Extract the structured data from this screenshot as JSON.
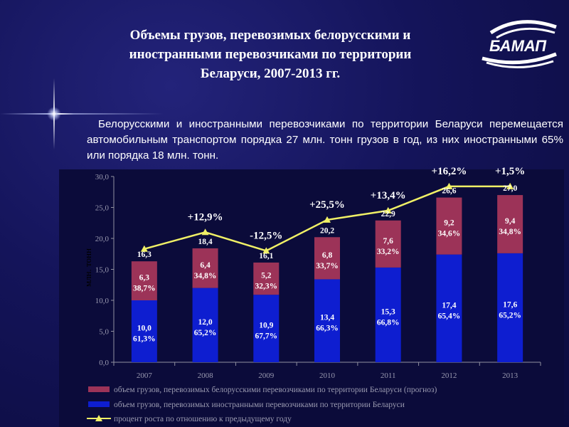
{
  "slide": {
    "title_line1": "Объемы грузов, перевозимых белорусскими и",
    "title_line2": "иностранными перевозчиками по территории",
    "title_line3": "Беларуси, 2007-2013 гг.",
    "paragraph": "Белорусскими и иностранными перевозчиками по территории Беларуси перемещается автомобильным транспортом порядка 27 млн. тонн грузов в год, из них иностранными 65% или порядка 18 млн. тонн.",
    "logo_text": "БАМАП"
  },
  "colors": {
    "belarusian_bar": "#9c3358",
    "foreign_bar": "#0e1ed0",
    "growth_line": "#f0f066",
    "axis": "#9090a0"
  },
  "chart_data": {
    "type": "bar",
    "stacked": true,
    "ylabel": "млн. тонн",
    "ylim": [
      0,
      30
    ],
    "yticks": [
      "0,0",
      "5,0",
      "10,0",
      "15,0",
      "20,0",
      "25,0",
      "30,0"
    ],
    "categories": [
      "2007",
      "2008",
      "2009",
      "2010",
      "2011",
      "2012",
      "2013"
    ],
    "series": [
      {
        "name": "объем грузов, перевозимых иностранными перевозчиками по территории Беларуси",
        "values": [
          10.0,
          12.0,
          10.9,
          13.4,
          15.3,
          17.4,
          17.6
        ],
        "value_labels": [
          "10,0",
          "12,0",
          "10,9",
          "13,4",
          "15,3",
          "17,4",
          "17,6"
        ],
        "share_labels": [
          "61,3%",
          "65,2%",
          "67,7%",
          "66,3%",
          "66,8%",
          "65,4%",
          "65,2%"
        ]
      },
      {
        "name": "объем грузов, перевозимых белорусскими перевозчиками по территории Беларуси (прогноз)",
        "values": [
          6.3,
          6.4,
          5.2,
          6.8,
          7.6,
          9.2,
          9.4
        ],
        "value_labels": [
          "6,3",
          "6,4",
          "5,2",
          "6,8",
          "7,6",
          "9,2",
          "9,4"
        ],
        "share_labels": [
          "38,7%",
          "34,8%",
          "32,3%",
          "33,7%",
          "33,2%",
          "34,6%",
          "34,8%"
        ]
      }
    ],
    "totals": [
      16.3,
      18.4,
      16.1,
      20.2,
      22.9,
      26.6,
      27.0
    ],
    "total_labels": [
      "16,3",
      "18,4",
      "16,1",
      "20,2",
      "22,9",
      "26,6",
      "27,0"
    ],
    "growth_line": {
      "name": "процент роста по отношению к предыдущему году",
      "values": [
        18.3,
        21.0,
        18.0,
        23.0,
        24.5,
        28.4,
        28.4
      ],
      "labels": [
        "",
        "+12,9%",
        "-12,5%",
        "+25,5%",
        "+13,4%",
        "+16,2%",
        "+1,5%"
      ]
    },
    "legend_position": "bottom"
  }
}
